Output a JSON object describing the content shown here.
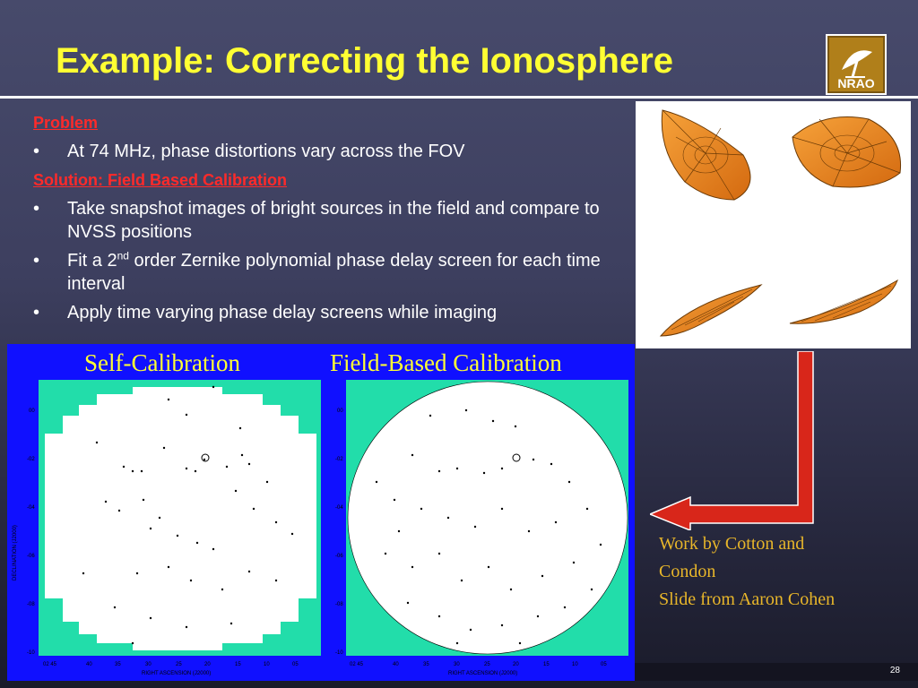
{
  "slide": {
    "title": "Example: Correcting the Ionosphere",
    "page_number": "28"
  },
  "logo": {
    "text": "NRAO",
    "colors": {
      "frame": "#b07f1a",
      "dish": "#ffffff"
    }
  },
  "content": {
    "problem_heading": "Problem",
    "problem_items": [
      "At 74 MHz, phase distortions vary across the FOV"
    ],
    "solution_heading": "Solution: Field Based Calibration",
    "solution_items": [
      {
        "text": "Take snapshot images of bright sources in the field and compare to NVSS positions"
      },
      {
        "pre": "Fit a 2",
        "sup": "nd",
        "post": " order Zernike polynomial phase delay screen for each time interval"
      },
      {
        "text": "Apply time varying phase delay screens while imaging"
      }
    ],
    "bullet": "•"
  },
  "panels": {
    "left_label": "Self-Calibration",
    "right_label": "Field-Based Calibration",
    "ylabel": "DECLINATION (J2000)",
    "xlabel": "RIGHT ASCENSION (J2000)",
    "yticks": [
      "00",
      "-02",
      "-04",
      "-06",
      "-08",
      "-10"
    ],
    "xticks": [
      "02 45",
      "40",
      "35",
      "30",
      "25",
      "20",
      "15",
      "10",
      "05"
    ],
    "colors": {
      "background": "#1010ff",
      "field": "#ffffff",
      "outside": "#22ddaa"
    }
  },
  "credit": {
    "lines": [
      "Work by Cotton and",
      "Condon",
      "Slide from Aaron Cohen"
    ]
  },
  "arrow": {
    "color": "#d8261a"
  }
}
